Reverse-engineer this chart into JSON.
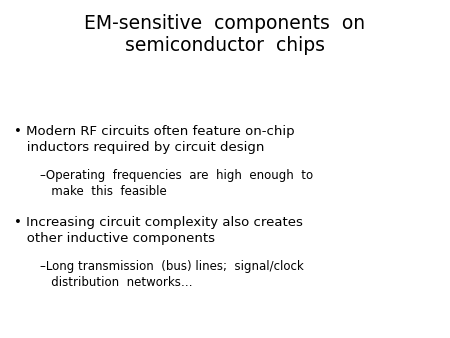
{
  "background_color": "#ffffff",
  "title_line1": "EM-sensitive  components  on",
  "title_line2": "semiconductor  chips",
  "title_fontsize": 13.5,
  "title_color": "#000000",
  "bullet1_text1": "Modern RF circuits often feature on-chip",
  "bullet1_text2": "inductors required by circuit design",
  "sub1_text1": "–Operating  frequencies  are  high  enough  to",
  "sub1_text2": "   make  this  feasible",
  "bullet2_text1": "Increasing circuit complexity also creates",
  "bullet2_text2": "other inductive components",
  "sub2_text1": "–Long transmission  (bus) lines;  signal/clock",
  "sub2_text2": "   distribution  networks…",
  "bullet_fontsize": 9.5,
  "sub_fontsize": 8.5,
  "text_color": "#000000",
  "bullet_symbol": "•"
}
